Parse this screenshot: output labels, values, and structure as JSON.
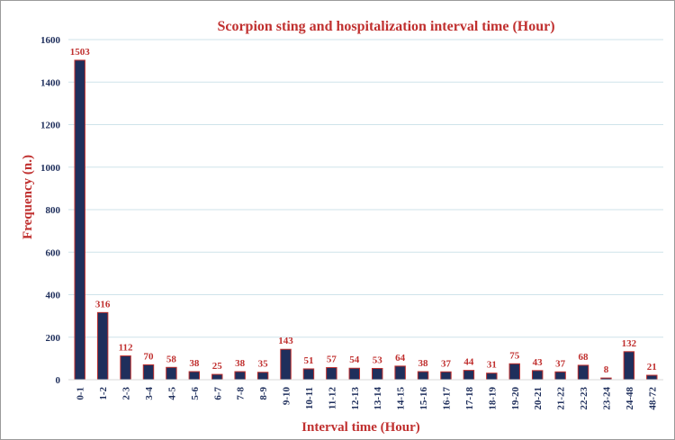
{
  "colors": {
    "bar_fill": "#1f2f5c",
    "bar_edge": "#c0302f",
    "title": "#c0302f",
    "axis_label": "#c0302f",
    "data_label": "#c0302f",
    "tick_label": "#1f2f5c",
    "grid": "#cfe3ea"
  },
  "chart_data": {
    "type": "bar",
    "title": "Scorpion sting and hospitalization interval time (Hour)",
    "xlabel": "Interval time (Hour)",
    "ylabel": "Frequency (n.)",
    "ylim": [
      0,
      1600
    ],
    "yticks": [
      0,
      200,
      400,
      600,
      800,
      1000,
      1200,
      1400,
      1600
    ],
    "grid": true,
    "legend": "none",
    "categories": [
      "0-1",
      "1-2",
      "2-3",
      "3-4",
      "4-5",
      "5-6",
      "6-7",
      "7-8",
      "8-9",
      "9-10",
      "10-11",
      "11-12",
      "12-13",
      "13-14",
      "14-15",
      "15-16",
      "16-17",
      "17-18",
      "18-19",
      "19-20",
      "20-21",
      "21-22",
      "22-23",
      "23-24",
      "24-48",
      "48-72"
    ],
    "values": [
      1503,
      316,
      112,
      70,
      58,
      38,
      25,
      38,
      35,
      143,
      51,
      57,
      54,
      53,
      64,
      38,
      37,
      44,
      31,
      75,
      43,
      37,
      68,
      8,
      132,
      21
    ]
  }
}
